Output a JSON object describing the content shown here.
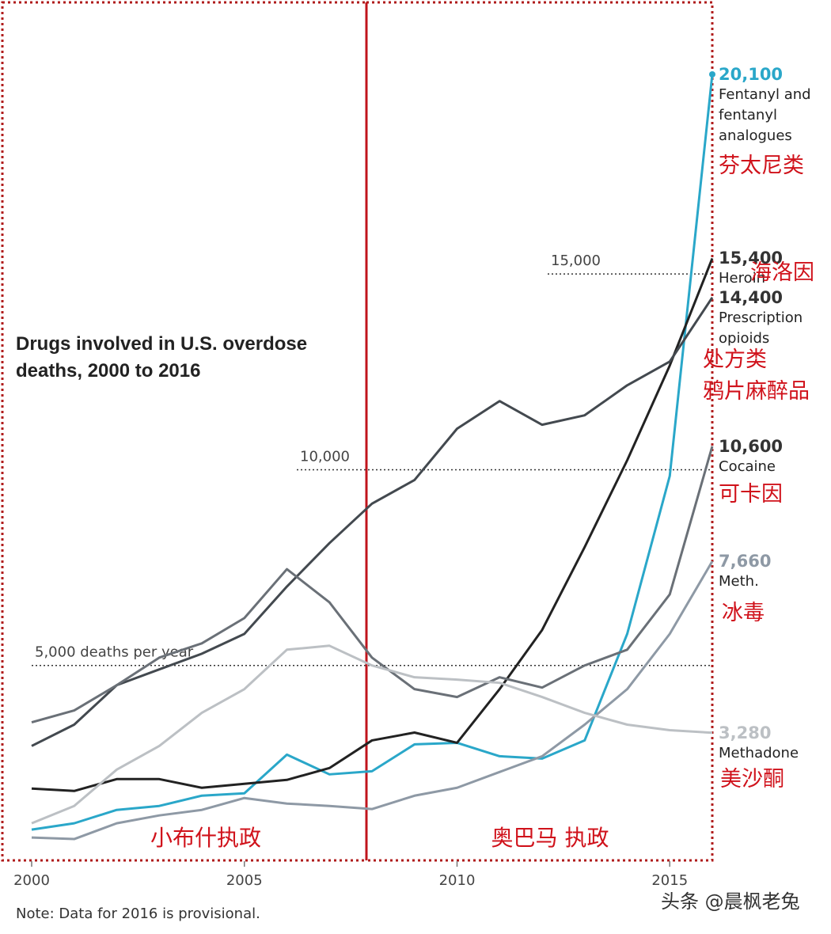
{
  "chart_data": {
    "type": "line",
    "title": "Drugs involved in U.S. overdose deaths, 2000 to 2016",
    "note": "Note: Data for 2016 is provisional.",
    "x": [
      2000,
      2001,
      2002,
      2003,
      2004,
      2005,
      2006,
      2007,
      2008,
      2009,
      2010,
      2011,
      2012,
      2013,
      2014,
      2015,
      2016
    ],
    "xlim": [
      2000,
      2016
    ],
    "xticks": [
      2000,
      2005,
      2010,
      2015
    ],
    "ylim": [
      0,
      22000
    ],
    "yticks": [
      {
        "value": 5000,
        "label": "5,000 deaths per year"
      },
      {
        "value": 10000,
        "label": "10,000"
      },
      {
        "value": 15000,
        "label": "15,000"
      }
    ],
    "series": [
      {
        "name": "Fentanyl and fentanyl analogues",
        "color": "#2aa7c9",
        "annotation": [
          "芬太尼类"
        ],
        "values": [
          806,
          968,
          1310,
          1411,
          1673,
          1734,
          2722,
          2218,
          2298,
          2984,
          3024,
          2681,
          2621,
          3085,
          5806,
          9839,
          20100
        ],
        "value_labels": [
          null,
          null,
          null,
          null,
          null,
          null,
          null,
          null,
          null,
          null,
          null,
          null,
          null,
          null,
          null,
          null,
          "20,100"
        ]
      },
      {
        "name": "Heroin",
        "color": "#222222",
        "annotation": [
          "海洛因"
        ],
        "values": [
          1855,
          1794,
          2097,
          2097,
          1875,
          1976,
          2077,
          2379,
          3085,
          3286,
          3024,
          4395,
          5907,
          8024,
          10242,
          12661,
          15400
        ],
        "value_labels": [
          null,
          null,
          null,
          null,
          null,
          null,
          null,
          null,
          null,
          null,
          null,
          null,
          null,
          null,
          null,
          null,
          "15,400"
        ]
      },
      {
        "name": "Prescription opioids",
        "color": "#43494f",
        "annotation": [
          "处方类",
          "鸦片麻醉品"
        ],
        "values": [
          2944,
          3488,
          4496,
          4900,
          5300,
          5806,
          7016,
          8125,
          9133,
          9738,
          11048,
          11754,
          11149,
          11391,
          12157,
          12762,
          14400
        ],
        "value_labels": [
          null,
          null,
          null,
          null,
          null,
          null,
          null,
          null,
          null,
          null,
          null,
          null,
          null,
          null,
          null,
          null,
          "14,400"
        ]
      },
      {
        "name": "Cocaine",
        "color": "#6a7077",
        "annotation": [
          "可卡因"
        ],
        "values": [
          3548,
          3850,
          4496,
          5200,
          5565,
          6210,
          7460,
          6613,
          5200,
          4395,
          4194,
          4698,
          4435,
          5000,
          5403,
          6815,
          10600
        ],
        "value_labels": [
          null,
          null,
          null,
          null,
          null,
          null,
          null,
          null,
          null,
          null,
          null,
          null,
          null,
          null,
          null,
          null,
          "10,600"
        ]
      },
      {
        "name": "Meth.",
        "color": "#8e99a5",
        "annotation": [
          "冰毒"
        ],
        "values": [
          605,
          565,
          968,
          1169,
          1310,
          1613,
          1472,
          1411,
          1331,
          1673,
          1875,
          2278,
          2681,
          3488,
          4395,
          5806,
          7660
        ],
        "value_labels": [
          null,
          null,
          null,
          null,
          null,
          null,
          null,
          null,
          null,
          null,
          null,
          null,
          null,
          null,
          null,
          null,
          "7,660"
        ]
      },
      {
        "name": "Methadone",
        "color": "#bcc0c4",
        "annotation": [
          "美沙酮"
        ],
        "values": [
          968,
          1411,
          2339,
          2944,
          3790,
          4395,
          5403,
          5504,
          5000,
          4698,
          4637,
          4556,
          4194,
          3790,
          3488,
          3347,
          3280
        ],
        "value_labels": [
          null,
          null,
          null,
          null,
          null,
          null,
          null,
          null,
          null,
          null,
          null,
          null,
          null,
          null,
          null,
          null,
          "3,280"
        ]
      }
    ],
    "annotations": {
      "bush": "小布什执政",
      "obama": "奥巴马 执政",
      "watermark": "头条 @晨枫老兔"
    }
  }
}
